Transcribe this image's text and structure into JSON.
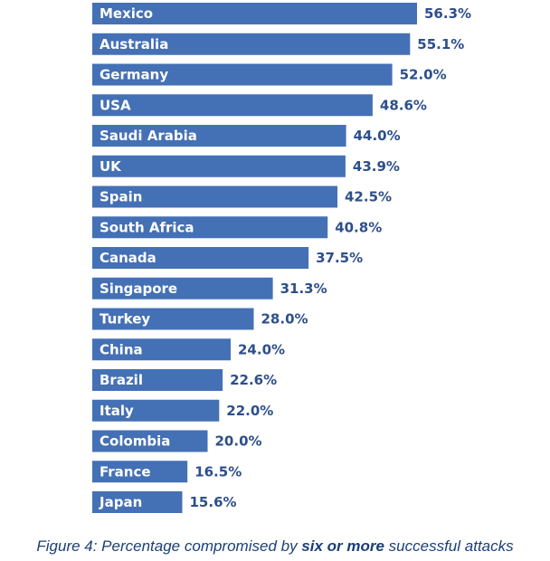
{
  "chart_data": {
    "type": "bar",
    "orientation": "horizontal",
    "categories": [
      "Mexico",
      "Australia",
      "Germany",
      "USA",
      "Saudi Arabia",
      "UK",
      "Spain",
      "South Africa",
      "Canada",
      "Singapore",
      "Turkey",
      "China",
      "Brazil",
      "Italy",
      "Colombia",
      "France",
      "Japan"
    ],
    "values": [
      56.3,
      55.1,
      52.0,
      48.6,
      44.0,
      43.9,
      42.5,
      40.8,
      37.5,
      31.3,
      28.0,
      24.0,
      22.6,
      22.0,
      20.0,
      16.5,
      15.6
    ],
    "value_labels": [
      "56.3%",
      "55.1%",
      "52.0%",
      "48.6%",
      "44.0%",
      "43.9%",
      "42.5%",
      "40.8%",
      "37.5%",
      "31.3%",
      "28.0%",
      "24.0%",
      "22.6%",
      "22.0%",
      "20.0%",
      "16.5%",
      "15.6%"
    ],
    "unit": "%",
    "xlim": [
      0,
      56.3
    ],
    "title": "",
    "xlabel": "",
    "ylabel": "",
    "grid": false,
    "bar_color": "#4470b5",
    "label_color": "#2d4f8a"
  },
  "caption": {
    "prefix": "Figure 4: Percentage compromised by ",
    "emphasis": "six or more",
    "suffix": " successful attacks"
  }
}
